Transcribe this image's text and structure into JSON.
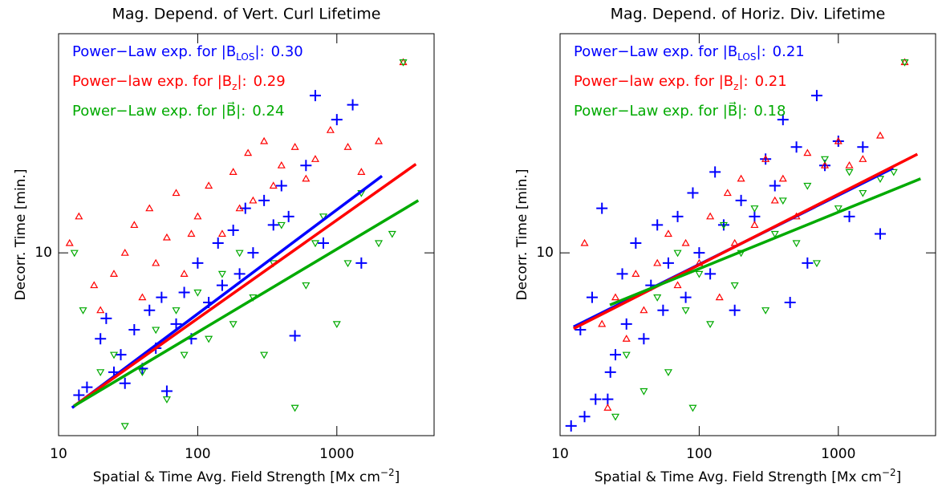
{
  "chart_data": [
    {
      "type": "scatter",
      "log": true,
      "title": "Mag. Depend. of Vert. Curl Lifetime",
      "x_label": "Spatial & Time Avg. Field Strength [Mx cm",
      "x_label_sup": "−2",
      "x_label_end": "]",
      "y_label": "Decorr. Time [min.]",
      "xlim": [
        10,
        5000
      ],
      "xticks": [
        10,
        100,
        1000
      ],
      "ylim": [
        4,
        30
      ],
      "yticks": [
        10
      ],
      "series": [
        {
          "label": "Power−Law exp. for |B",
          "label_sub": "LOS",
          "label_end": "|:",
          "exponent": "0.30",
          "color": "#0000ff",
          "marker": "plus",
          "x": [
            14,
            16,
            20,
            22,
            25,
            28,
            30,
            35,
            40,
            45,
            50,
            55,
            60,
            70,
            80,
            90,
            100,
            120,
            140,
            150,
            180,
            200,
            220,
            250,
            300,
            350,
            400,
            450,
            500,
            600,
            700,
            800,
            1000,
            1300,
            1500
          ],
          "y": [
            4.9,
            5.1,
            6.5,
            7.2,
            5.5,
            6.0,
            5.2,
            6.8,
            5.6,
            7.5,
            6.2,
            8.0,
            5.0,
            7.0,
            8.2,
            6.5,
            9.5,
            7.8,
            10.5,
            8.5,
            11.2,
            9.0,
            12.5,
            10.0,
            13.0,
            11.5,
            14.0,
            12.0,
            6.6,
            15.5,
            22.0,
            10.5,
            19.5,
            21.0,
            9.5
          ],
          "fit_x": [
            12.5,
            2110
          ],
          "fit_y": [
            4.6,
            14.7
          ]
        },
        {
          "label": "Power−law exp. for |B",
          "label_sub": "z",
          "label_end": "|:",
          "exponent": "0.29",
          "color": "#ff0000",
          "marker": "triangle-up",
          "x": [
            12,
            14,
            18,
            20,
            25,
            30,
            35,
            40,
            45,
            50,
            60,
            70,
            80,
            90,
            100,
            120,
            150,
            180,
            200,
            230,
            250,
            300,
            350,
            400,
            500,
            600,
            700,
            900,
            1200,
            1500,
            2000,
            3000
          ],
          "y": [
            10.5,
            12.0,
            8.5,
            7.5,
            9.0,
            10.0,
            11.5,
            8.0,
            12.5,
            9.5,
            10.8,
            13.5,
            9.0,
            11.0,
            12.0,
            14.0,
            11.0,
            15.0,
            12.5,
            16.5,
            13.0,
            17.5,
            14.0,
            15.5,
            17.0,
            14.5,
            16.0,
            18.5,
            17.0,
            15.0,
            17.5,
            26.0
          ],
          "fit_x": [
            12.9,
            3700
          ],
          "fit_y": [
            4.64,
            15.6
          ]
        },
        {
          "label": "Power−Law exp. for |B⃗",
          "label_end": "|:",
          "exponent": "0.24",
          "color": "#00aa00",
          "marker": "triangle-down",
          "x": [
            13,
            15,
            20,
            25,
            30,
            40,
            50,
            60,
            70,
            80,
            100,
            120,
            150,
            180,
            200,
            250,
            300,
            350,
            400,
            500,
            600,
            700,
            800,
            1000,
            1200,
            1500,
            2000,
            2500,
            3000
          ],
          "y": [
            10.0,
            7.5,
            5.5,
            6.0,
            4.2,
            5.5,
            6.8,
            4.8,
            7.5,
            6.0,
            8.2,
            6.5,
            9.0,
            7.0,
            10.0,
            8.0,
            6.0,
            9.5,
            11.5,
            4.6,
            8.5,
            10.5,
            12.0,
            7.0,
            9.5,
            13.5,
            10.5,
            11.0,
            26.0
          ],
          "fit_x": [
            12.9,
            3850
          ],
          "fit_y": [
            4.64,
            13.0
          ]
        }
      ]
    },
    {
      "type": "scatter",
      "log": true,
      "title": "Mag. Depend. of Horiz. Div. Lifetime",
      "x_label": "Spatial & Time Avg. Field Strength [Mx cm",
      "x_label_sup": "−2",
      "x_label_end": "]",
      "y_label": "Decorr. Time [min.]",
      "xlim": [
        10,
        5000
      ],
      "xticks": [
        10,
        100,
        1000
      ],
      "ylim": [
        4,
        30
      ],
      "yticks": [
        10
      ],
      "series": [
        {
          "label": "Power−Law exp. for |B",
          "label_sub": "LOS",
          "label_end": "|:",
          "exponent": "0.21",
          "color": "#0000ff",
          "marker": "plus",
          "x": [
            12,
            14,
            15,
            17,
            18,
            20,
            22,
            23,
            25,
            28,
            30,
            35,
            40,
            45,
            50,
            55,
            60,
            70,
            80,
            90,
            100,
            120,
            130,
            150,
            180,
            200,
            250,
            300,
            350,
            400,
            450,
            500,
            600,
            700,
            800,
            1000,
            1200,
            1500,
            2000
          ],
          "y": [
            4.2,
            6.8,
            4.4,
            8.0,
            4.8,
            12.5,
            4.8,
            5.5,
            6.0,
            9.0,
            7.0,
            10.5,
            6.5,
            8.5,
            11.5,
            7.5,
            9.5,
            12.0,
            8.0,
            13.5,
            10.0,
            9.0,
            15.0,
            11.5,
            7.5,
            13.0,
            12.0,
            16.0,
            14.0,
            19.5,
            7.8,
            17.0,
            9.5,
            22.0,
            15.5,
            17.5,
            12.0,
            17.0,
            11.0
          ],
          "fit_x": [
            12.5,
            2480
          ],
          "fit_y": [
            6.9,
            15.3
          ]
        },
        {
          "label": "Power−law exp. for |B",
          "label_sub": "z",
          "label_end": "|:",
          "exponent": "0.21",
          "color": "#ff0000",
          "marker": "triangle-up",
          "x": [
            15,
            20,
            22,
            25,
            30,
            35,
            40,
            50,
            60,
            70,
            80,
            100,
            120,
            140,
            160,
            180,
            200,
            250,
            300,
            350,
            400,
            500,
            600,
            800,
            1000,
            1200,
            1500,
            2000,
            3000
          ],
          "y": [
            10.5,
            7.0,
            4.6,
            8.0,
            6.5,
            9.0,
            7.5,
            9.5,
            11.0,
            8.5,
            10.5,
            9.5,
            12.0,
            8.0,
            13.5,
            10.5,
            14.5,
            11.5,
            16.0,
            13.0,
            14.5,
            12.0,
            16.5,
            15.5,
            17.5,
            15.5,
            16.0,
            18.0,
            26.0
          ],
          "fit_x": [
            12.5,
            3700
          ],
          "fit_y": [
            6.84,
            16.4
          ]
        },
        {
          "label": "Power−Law exp. for |B⃗",
          "label_end": "|:",
          "exponent": "0.18",
          "color": "#00aa00",
          "marker": "triangle-down",
          "x": [
            25,
            30,
            40,
            50,
            60,
            70,
            80,
            90,
            100,
            120,
            150,
            180,
            200,
            250,
            300,
            350,
            400,
            500,
            600,
            700,
            800,
            1000,
            1200,
            1500,
            2000,
            2500,
            3000
          ],
          "y": [
            4.4,
            6.0,
            5.0,
            8.0,
            5.5,
            10.0,
            7.5,
            4.6,
            9.0,
            7.0,
            11.5,
            8.5,
            10.0,
            12.5,
            7.5,
            11.0,
            13.0,
            10.5,
            14.0,
            9.5,
            16.0,
            12.5,
            15.0,
            13.5,
            14.5,
            15.0,
            26.0
          ],
          "fit_x": [
            22.8,
            3900
          ],
          "fit_y": [
            7.7,
            14.5
          ]
        }
      ]
    }
  ]
}
